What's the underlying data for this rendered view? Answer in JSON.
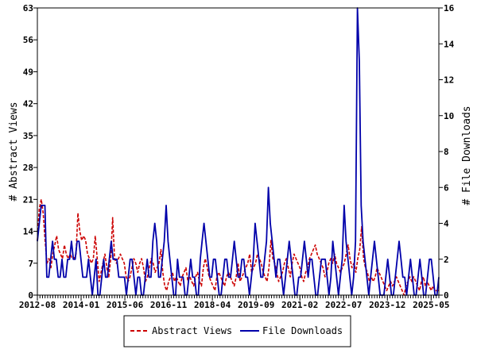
{
  "chart_data": {
    "type": "line",
    "x_axis": {
      "start": "2012-08",
      "end": "2025-08",
      "tick_labels": [
        "2012-08",
        "2014-01",
        "2015-06",
        "2016-11",
        "2018-04",
        "2019-09",
        "2021-02",
        "2022-07",
        "2023-12",
        "2025-05"
      ]
    },
    "y_left": {
      "label": "# Abstract Views",
      "min": 0,
      "max": 63,
      "ticks": [
        0,
        7,
        14,
        21,
        28,
        35,
        42,
        49,
        56,
        63
      ]
    },
    "y_right": {
      "label": "# File Downloads",
      "min": 0,
      "max": 16,
      "ticks": [
        0,
        2,
        4,
        6,
        8,
        10,
        12,
        14,
        16
      ]
    },
    "grid": false,
    "legend_position": "bottom",
    "series": [
      {
        "name": "Abstract Views",
        "axis": "left",
        "color": "#cc0000",
        "dash": true,
        "values": [
          12,
          19,
          21,
          18,
          12,
          7,
          8,
          6,
          9,
          11,
          13,
          10,
          9,
          8,
          11,
          9,
          8,
          9,
          8,
          8,
          9,
          18,
          14,
          12,
          13,
          12,
          9,
          8,
          7,
          8,
          13,
          8,
          3,
          5,
          7,
          9,
          6,
          4,
          8,
          17,
          8,
          7,
          8,
          9,
          8,
          7,
          4,
          3,
          4,
          6,
          8,
          7,
          5,
          7,
          8,
          6,
          3,
          4,
          6,
          8,
          7,
          5,
          6,
          7,
          10,
          5,
          2,
          1,
          3,
          4,
          5,
          3,
          4,
          3,
          2,
          4,
          5,
          6,
          3,
          4,
          3,
          2,
          4,
          5,
          3,
          2,
          6,
          8,
          6,
          4,
          3,
          2,
          1,
          4,
          5,
          4,
          3,
          2,
          4,
          5,
          4,
          3,
          2,
          4,
          7,
          3,
          4,
          5,
          6,
          7,
          9,
          5,
          6,
          7,
          9,
          8,
          7,
          5,
          4,
          3,
          6,
          12,
          8,
          7,
          5,
          3,
          4,
          5,
          7,
          8,
          6,
          4,
          7,
          9,
          8,
          7,
          6,
          4,
          3,
          5,
          6,
          8,
          9,
          10,
          11,
          9,
          8,
          7,
          6,
          4,
          5,
          7,
          8,
          7,
          9,
          7,
          6,
          5,
          6,
          7,
          9,
          11,
          8,
          6,
          7,
          5,
          8,
          10,
          15,
          8,
          6,
          5,
          3,
          4,
          3,
          4,
          6,
          5,
          4,
          3,
          2,
          1,
          2,
          3,
          2,
          3,
          4,
          3,
          2,
          1,
          0,
          2,
          3,
          4,
          3,
          4,
          3,
          2,
          1,
          3,
          4,
          2,
          3,
          2,
          1,
          2,
          1,
          1,
          1
        ]
      },
      {
        "name": "File Downloads",
        "axis": "right",
        "color": "#0000aa",
        "dash": false,
        "values": [
          3,
          4,
          5,
          5,
          5,
          1,
          1,
          2,
          3,
          2,
          2,
          1,
          1,
          2,
          1,
          1,
          2,
          2,
          3,
          2,
          2,
          3,
          3,
          2,
          1,
          1,
          1,
          2,
          1,
          0,
          1,
          2,
          0,
          0,
          1,
          2,
          1,
          1,
          2,
          3,
          2,
          2,
          2,
          1,
          1,
          1,
          1,
          0,
          1,
          2,
          2,
          1,
          0,
          1,
          1,
          0,
          0,
          1,
          2,
          1,
          1,
          3,
          4,
          3,
          1,
          1,
          2,
          3,
          5,
          3,
          2,
          1,
          0,
          0,
          2,
          1,
          1,
          1,
          0,
          0,
          1,
          2,
          1,
          1,
          0,
          0,
          2,
          3,
          4,
          3,
          2,
          1,
          1,
          2,
          2,
          1,
          0,
          0,
          1,
          2,
          2,
          1,
          1,
          2,
          3,
          2,
          1,
          1,
          2,
          2,
          1,
          1,
          0,
          1,
          2,
          4,
          3,
          2,
          1,
          1,
          2,
          3,
          6,
          4,
          3,
          2,
          1,
          2,
          2,
          1,
          0,
          1,
          2,
          3,
          2,
          1,
          0,
          0,
          1,
          1,
          2,
          3,
          2,
          1,
          2,
          2,
          1,
          0,
          0,
          1,
          2,
          2,
          2,
          1,
          0,
          1,
          3,
          2,
          1,
          0,
          1,
          2,
          5,
          3,
          2,
          1,
          0,
          1,
          3,
          16,
          13,
          5,
          3,
          2,
          1,
          0,
          1,
          2,
          3,
          2,
          1,
          0,
          0,
          0,
          1,
          2,
          1,
          0,
          0,
          1,
          2,
          3,
          2,
          1,
          1,
          0,
          1,
          2,
          1,
          0,
          0,
          1,
          2,
          1,
          0,
          0,
          1,
          2,
          2,
          1,
          0,
          0,
          1
        ]
      }
    ]
  }
}
